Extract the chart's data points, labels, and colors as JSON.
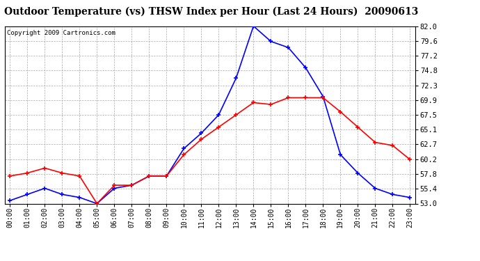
{
  "title": "Outdoor Temperature (vs) THSW Index per Hour (Last 24 Hours)  20090613",
  "copyright": "Copyright 2009 Cartronics.com",
  "hours": [
    "00:00",
    "01:00",
    "02:00",
    "03:00",
    "04:00",
    "05:00",
    "06:00",
    "07:00",
    "08:00",
    "09:00",
    "10:00",
    "11:00",
    "12:00",
    "13:00",
    "14:00",
    "15:00",
    "16:00",
    "17:00",
    "18:00",
    "19:00",
    "20:00",
    "21:00",
    "22:00",
    "23:00"
  ],
  "outdoor_temp": [
    57.5,
    58.0,
    58.8,
    58.0,
    57.5,
    53.0,
    56.0,
    56.0,
    57.5,
    57.5,
    61.0,
    63.5,
    65.5,
    67.5,
    69.5,
    69.2,
    70.3,
    70.3,
    70.3,
    68.0,
    65.5,
    63.0,
    62.5,
    60.2
  ],
  "thsw_index": [
    53.5,
    54.5,
    55.5,
    54.5,
    54.0,
    53.0,
    55.5,
    56.0,
    57.5,
    57.5,
    62.0,
    64.5,
    67.5,
    73.5,
    82.0,
    79.5,
    78.5,
    75.2,
    70.5,
    61.0,
    58.0,
    55.5,
    54.5,
    54.0
  ],
  "ylim_min": 53.0,
  "ylim_max": 82.0,
  "yticks": [
    53.0,
    55.4,
    57.8,
    60.2,
    62.7,
    65.1,
    67.5,
    69.9,
    72.3,
    74.8,
    77.2,
    79.6,
    82.0
  ],
  "outdoor_color": "#ff0000",
  "thsw_color": "#0000ff",
  "grid_color": "#aaaaaa",
  "bg_color": "#ffffff",
  "title_fontsize": 10,
  "tick_fontsize": 7,
  "copyright_fontsize": 6.5
}
